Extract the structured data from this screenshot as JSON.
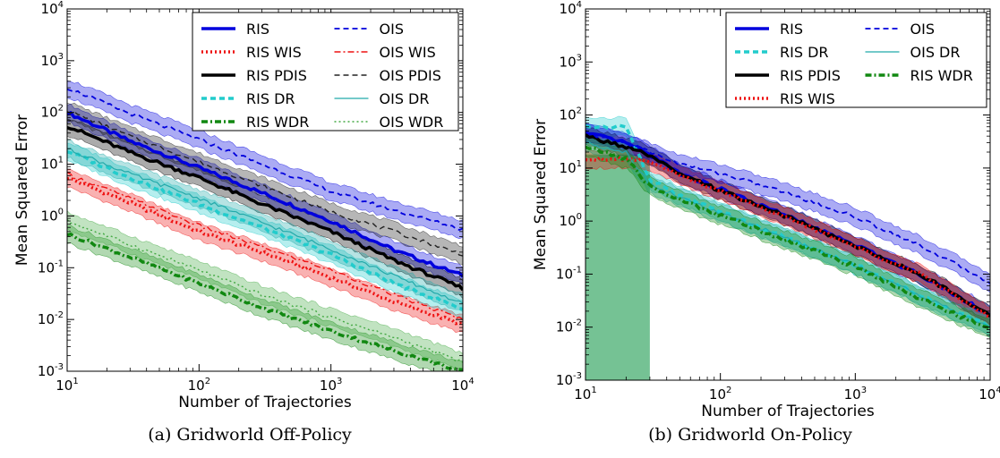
{
  "chart_data": [
    {
      "type": "line",
      "caption": "(a) Gridworld Off-Policy",
      "xlabel": "Number of Trajectories",
      "ylabel": "Mean Squared Error",
      "xscale": "log",
      "yscale": "log",
      "xlim": [
        10,
        10000
      ],
      "ylim": [
        0.001,
        10000
      ],
      "x_ticks": [
        {
          "base": "10",
          "exp": "1",
          "value": 10
        },
        {
          "base": "10",
          "exp": "2",
          "value": 100
        },
        {
          "base": "10",
          "exp": "3",
          "value": 1000
        },
        {
          "base": "10",
          "exp": "4",
          "value": 10000
        }
      ],
      "y_ticks": [
        {
          "base": "10",
          "exp": "-3",
          "value": 0.001
        },
        {
          "base": "10",
          "exp": "-2",
          "value": 0.01
        },
        {
          "base": "10",
          "exp": "-1",
          "value": 0.1
        },
        {
          "base": "10",
          "exp": "0",
          "value": 1
        },
        {
          "base": "10",
          "exp": "1",
          "value": 10
        },
        {
          "base": "10",
          "exp": "2",
          "value": 100
        },
        {
          "base": "10",
          "exp": "3",
          "value": 1000
        },
        {
          "base": "10",
          "exp": "4",
          "value": 10000
        }
      ],
      "legend_position": "top-right",
      "legend_columns": 2,
      "series": [
        {
          "name": "RIS",
          "color": "#0000dd",
          "style": "solid",
          "width": 3.5,
          "band": true,
          "x": [
            10,
            30,
            100,
            300,
            1000,
            3000,
            10000
          ],
          "y": [
            100,
            28,
            8.5,
            2.8,
            0.8,
            0.22,
            0.07
          ]
        },
        {
          "name": "RIS WIS",
          "color": "#ee1111",
          "style": "dotted",
          "width": 3.5,
          "band": true,
          "x": [
            10,
            30,
            100,
            300,
            1000,
            3000,
            10000
          ],
          "y": [
            5.5,
            1.8,
            0.5,
            0.2,
            0.065,
            0.022,
            0.008
          ]
        },
        {
          "name": "RIS PDIS",
          "color": "#000000",
          "style": "solid",
          "width": 3.5,
          "band": true,
          "x": [
            10,
            30,
            100,
            300,
            1000,
            3000,
            10000
          ],
          "y": [
            55,
            17,
            5.5,
            1.7,
            0.5,
            0.14,
            0.04
          ]
        },
        {
          "name": "RIS DR",
          "color": "#22cccc",
          "style": "dashed",
          "width": 3.5,
          "band": true,
          "x": [
            10,
            30,
            100,
            300,
            1000,
            3000,
            10000
          ],
          "y": [
            18,
            5.5,
            1.7,
            0.6,
            0.18,
            0.05,
            0.016
          ]
        },
        {
          "name": "RIS WDR",
          "color": "#118811",
          "style": "dashdot",
          "width": 3.5,
          "band": true,
          "x": [
            10,
            30,
            100,
            300,
            1000,
            3000,
            10000
          ],
          "y": [
            0.45,
            0.16,
            0.05,
            0.017,
            0.006,
            0.0025,
            0.001
          ]
        },
        {
          "name": "OIS",
          "color": "#0000dd",
          "style": "dashed",
          "width": 1.8,
          "band": true,
          "x": [
            10,
            30,
            100,
            300,
            1000,
            3000,
            10000
          ],
          "y": [
            300,
            95,
            30,
            10,
            3,
            1.3,
            0.55
          ]
        },
        {
          "name": "OIS WIS",
          "color": "#ee1111",
          "style": "dashdot",
          "width": 1.4,
          "band": false,
          "x": [
            10,
            30,
            100,
            300,
            1000,
            3000,
            10000
          ],
          "y": [
            6.5,
            2.2,
            0.65,
            0.25,
            0.09,
            0.03,
            0.01
          ]
        },
        {
          "name": "OIS PDIS",
          "color": "#222222",
          "style": "dashed",
          "width": 1.4,
          "band": true,
          "x": [
            10,
            30,
            100,
            300,
            1000,
            3000,
            10000
          ],
          "y": [
            110,
            35,
            11,
            3.8,
            1.2,
            0.5,
            0.18
          ]
        },
        {
          "name": "OIS DR",
          "color": "#22aaaa",
          "style": "solid",
          "width": 1.2,
          "band": true,
          "x": [
            10,
            30,
            100,
            300,
            1000,
            3000,
            10000
          ],
          "y": [
            20,
            6.5,
            2.2,
            0.75,
            0.23,
            0.07,
            0.02
          ]
        },
        {
          "name": "OIS WDR",
          "color": "#44aa44",
          "style": "dotted",
          "width": 1.4,
          "band": true,
          "x": [
            10,
            30,
            100,
            300,
            1000,
            3000,
            10000
          ],
          "y": [
            0.8,
            0.28,
            0.09,
            0.03,
            0.011,
            0.0045,
            0.0015
          ]
        }
      ]
    },
    {
      "type": "line",
      "caption": "(b) Gridworld On-Policy",
      "xlabel": "Number of Trajectories",
      "ylabel": "Mean Squared Error",
      "xscale": "log",
      "yscale": "log",
      "xlim": [
        10,
        10000
      ],
      "ylim": [
        0.001,
        10000
      ],
      "x_ticks": [
        {
          "base": "10",
          "exp": "1",
          "value": 10
        },
        {
          "base": "10",
          "exp": "2",
          "value": 100
        },
        {
          "base": "10",
          "exp": "3",
          "value": 1000
        },
        {
          "base": "10",
          "exp": "4",
          "value": 10000
        }
      ],
      "y_ticks": [
        {
          "base": "10",
          "exp": "-3",
          "value": 0.001
        },
        {
          "base": "10",
          "exp": "-2",
          "value": 0.01
        },
        {
          "base": "10",
          "exp": "-1",
          "value": 0.1
        },
        {
          "base": "10",
          "exp": "0",
          "value": 1
        },
        {
          "base": "10",
          "exp": "1",
          "value": 10
        },
        {
          "base": "10",
          "exp": "2",
          "value": 100
        },
        {
          "base": "10",
          "exp": "3",
          "value": 1000
        },
        {
          "base": "10",
          "exp": "4",
          "value": 10000
        }
      ],
      "legend_position": "top-right",
      "legend_columns": 2,
      "series": [
        {
          "name": "RIS",
          "color": "#0000dd",
          "style": "solid",
          "width": 3.5,
          "band": true,
          "x": [
            10,
            20,
            30,
            50,
            100,
            300,
            1000,
            3000,
            10000
          ],
          "y": [
            45,
            30,
            18,
            8,
            4,
            1.3,
            0.35,
            0.1,
            0.017
          ]
        },
        {
          "name": "RIS DR",
          "color": "#22cccc",
          "style": "dashed",
          "width": 3.5,
          "band": true,
          "x": [
            10,
            20,
            30,
            50,
            100,
            300,
            1000,
            3000,
            10000
          ],
          "y": [
            60,
            60,
            6,
            3,
            1.5,
            0.5,
            0.15,
            0.04,
            0.01
          ]
        },
        {
          "name": "RIS PDIS",
          "color": "#000000",
          "style": "solid",
          "width": 3.5,
          "band": true,
          "x": [
            10,
            20,
            30,
            50,
            100,
            300,
            1000,
            3000,
            10000
          ],
          "y": [
            40,
            25,
            17,
            7.5,
            3.8,
            1.25,
            0.34,
            0.1,
            0.017
          ]
        },
        {
          "name": "RIS WIS",
          "color": "#ee1111",
          "style": "dotted",
          "width": 3.5,
          "band": true,
          "x": [
            10,
            20,
            30,
            50,
            100,
            300,
            1000,
            3000,
            10000
          ],
          "y": [
            15,
            15,
            14,
            7,
            3.8,
            1.2,
            0.33,
            0.1,
            0.016
          ]
        },
        {
          "name": "OIS",
          "color": "#0000dd",
          "style": "dashed",
          "width": 1.8,
          "band": true,
          "x": [
            10,
            20,
            30,
            50,
            100,
            300,
            1000,
            3000,
            10000
          ],
          "y": [
            45,
            30,
            20,
            12,
            8,
            3.5,
            1.2,
            0.35,
            0.07
          ]
        },
        {
          "name": "OIS DR",
          "color": "#22aaaa",
          "style": "solid",
          "width": 1.2,
          "band": true,
          "x": [
            10,
            20,
            30,
            50,
            100,
            300,
            1000,
            3000,
            10000
          ],
          "y": [
            30,
            20,
            5,
            2.8,
            1.4,
            0.5,
            0.15,
            0.04,
            0.01
          ]
        },
        {
          "name": "RIS WDR",
          "color": "#118811",
          "style": "dashdot",
          "width": 3.5,
          "band": true,
          "x": [
            10,
            20,
            30,
            50,
            100,
            300,
            1000,
            3000,
            10000
          ],
          "y": [
            25,
            15,
            4.5,
            2.5,
            1.3,
            0.45,
            0.14,
            0.035,
            0.009
          ]
        }
      ],
      "shaded_region": {
        "x": [
          10,
          30
        ],
        "y": [
          0.001,
          18
        ],
        "color": "#66bb88"
      }
    }
  ]
}
